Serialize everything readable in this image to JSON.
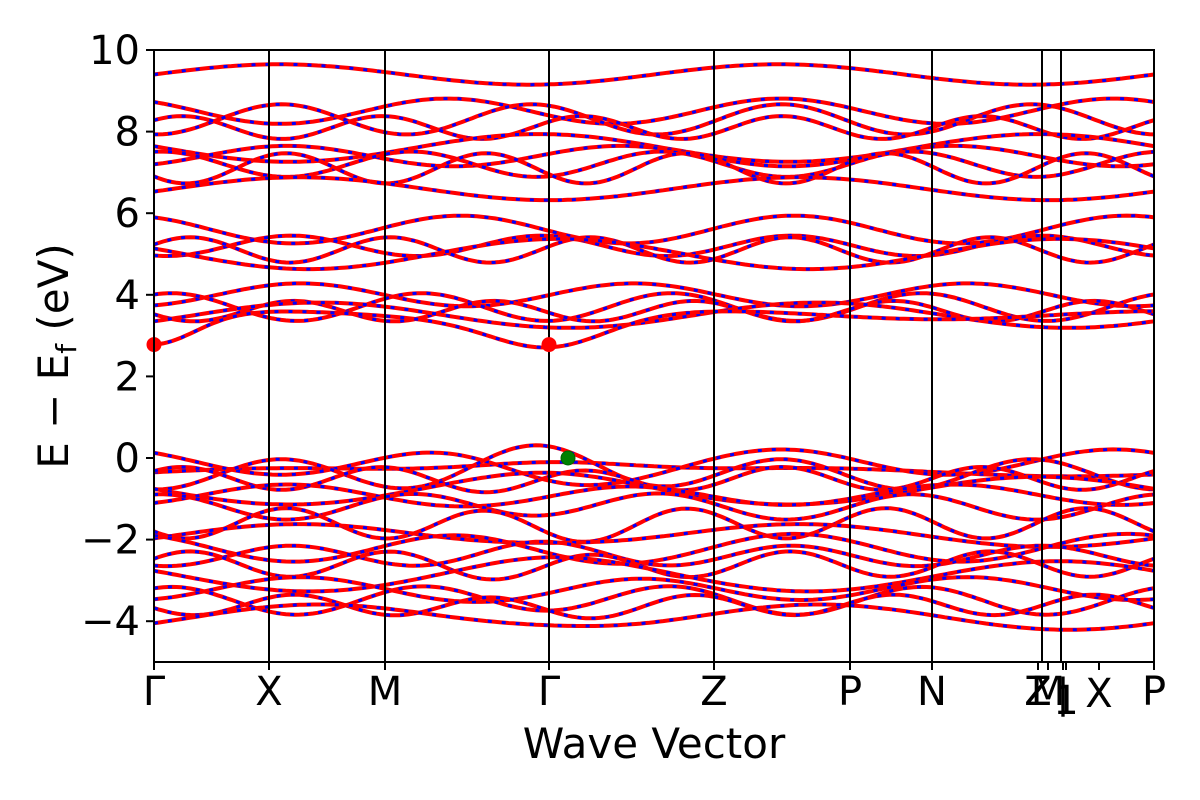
{
  "chart_data": {
    "type": "line",
    "title": "",
    "xlabel": "Wave Vector",
    "ylabel_parts": [
      "E − E",
      "f",
      " (eV)"
    ],
    "ylim": [
      -5,
      10
    ],
    "y_ticks": [
      "10",
      "8",
      "6",
      "4",
      "2",
      "0",
      "−2",
      "−4"
    ],
    "y_tick_values": [
      10,
      8,
      6,
      4,
      2,
      0,
      -2,
      -4
    ],
    "k_path_labels": [
      "Γ",
      "X",
      "M",
      "Γ",
      "Z",
      "P",
      "N",
      "Z",
      "M",
      "1",
      "|",
      "X",
      "P"
    ],
    "k_points": [
      {
        "label": "Γ",
        "x": 0.0
      },
      {
        "label": "X",
        "x": 0.115
      },
      {
        "label": "M",
        "x": 0.231
      },
      {
        "label": "Γ",
        "x": 0.395
      },
      {
        "label": "Z",
        "x": 0.56
      },
      {
        "label": "P",
        "x": 0.696
      },
      {
        "label": "N",
        "x": 0.778
      },
      {
        "label": "Z1|M",
        "x": 0.888
      },
      {
        "label": "X",
        "x": 0.907
      },
      {
        "label": "P",
        "x": 1.0
      }
    ],
    "series": [
      {
        "values": "spin up (red solid)",
        "color": "#ff0000"
      },
      {
        "values": "spin down (blue dashed)",
        "color": "#0000ff"
      }
    ],
    "markers": [
      {
        "kind": "CBM",
        "x": 0.0,
        "y": 2.78,
        "color": "#ff0000"
      },
      {
        "kind": "CBM",
        "x": 0.395,
        "y": 2.78,
        "color": "#ff0000"
      },
      {
        "kind": "VBM",
        "x": 0.414,
        "y": 0.0,
        "color": "#008000"
      }
    ],
    "band_anchor_energies": {
      "conduction": [
        9.4,
        8.5,
        8.3,
        8.1,
        7.6,
        7.4,
        7.2,
        7.1,
        6.6,
        5.6,
        5.2,
        5.1,
        5.0,
        4.0,
        3.7,
        3.6,
        3.5,
        2.78
      ],
      "valence": [
        0.0,
        -0.1,
        -0.4,
        -0.5,
        -0.8,
        -0.9,
        -1.2,
        -1.6,
        -1.9,
        -2.2,
        -2.4,
        -2.6,
        -2.9,
        -3.2,
        -3.5,
        -3.6,
        -3.9
      ]
    },
    "grid": false
  }
}
